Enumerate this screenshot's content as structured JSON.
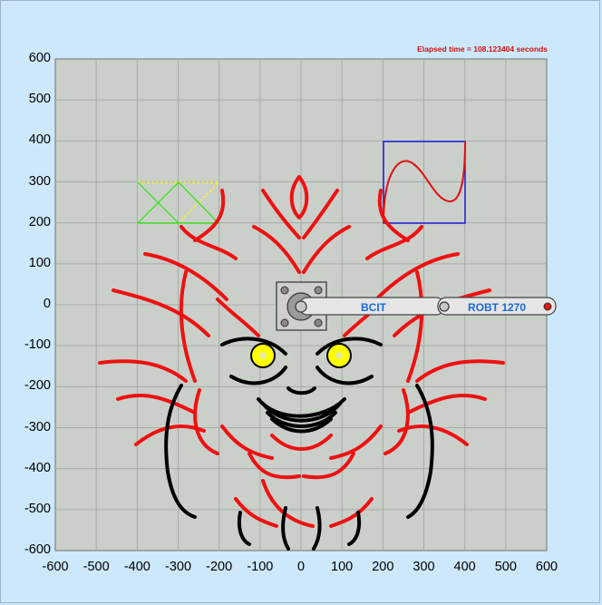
{
  "window": {
    "elapsed_label": "Elapsed time = 108.123404 seconds"
  },
  "axes": {
    "x_ticks": [
      "-600",
      "-500",
      "-400",
      "-300",
      "-200",
      "-100",
      "0",
      "100",
      "200",
      "300",
      "400",
      "500",
      "600"
    ],
    "y_ticks": [
      "600",
      "500",
      "400",
      "300",
      "200",
      "100",
      "0",
      "-100",
      "-200",
      "-300",
      "-400",
      "-500",
      "-600"
    ],
    "xlim": [
      -600,
      600
    ],
    "ylim": [
      -600,
      600
    ],
    "grid": true
  },
  "robot_arm": {
    "link1_label": "BCIT",
    "link2_label": "ROBT 1270",
    "end_effector_color": "#e01010",
    "link_color": "#e6e6e6"
  },
  "shapes": {
    "triangles_color": "#ffff00",
    "triangle_green_color": "#22dd22",
    "square_color": "#1010dd",
    "sine_color": "#e01010",
    "drawing_colors": [
      "#ee1111",
      "#000000",
      "#ffff00"
    ]
  }
}
